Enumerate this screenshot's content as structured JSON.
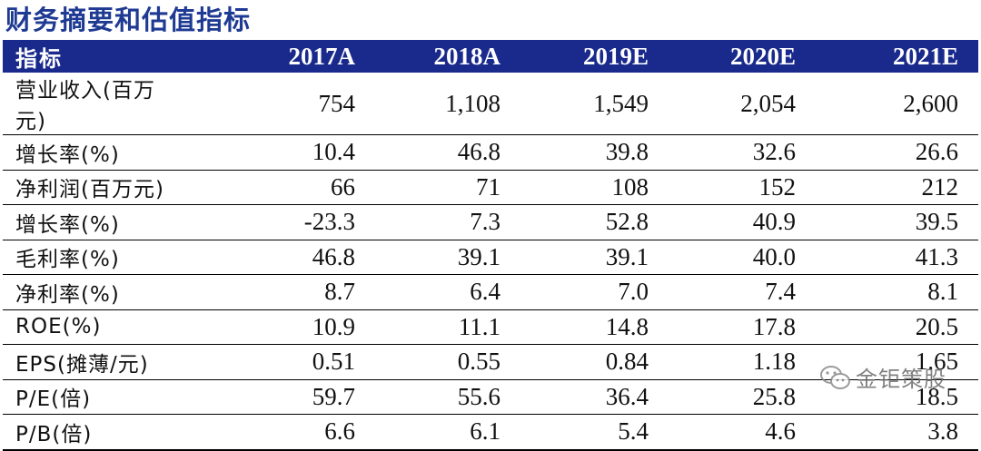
{
  "title": "财务摘要和估值指标",
  "table": {
    "header": [
      "指标",
      "2017A",
      "2018A",
      "2019E",
      "2020E",
      "2021E"
    ],
    "rows": [
      [
        "营业收入(百万元)",
        "754",
        "1,108",
        "1,549",
        "2,054",
        "2,600"
      ],
      [
        "增长率(%)",
        "10.4",
        "46.8",
        "39.8",
        "32.6",
        "26.6"
      ],
      [
        "净利润(百万元)",
        "66",
        "71",
        "108",
        "152",
        "212"
      ],
      [
        "增长率(%)",
        "-23.3",
        "7.3",
        "52.8",
        "40.9",
        "39.5"
      ],
      [
        "毛利率(%)",
        "46.8",
        "39.1",
        "39.1",
        "40.0",
        "41.3"
      ],
      [
        "净利率(%)",
        "8.7",
        "6.4",
        "7.0",
        "7.4",
        "8.1"
      ],
      [
        "ROE(%)",
        "10.9",
        "11.1",
        "14.8",
        "17.8",
        "20.5"
      ],
      [
        "EPS(摊薄/元)",
        "0.51",
        "0.55",
        "0.84",
        "1.18",
        "1.65"
      ],
      [
        "P/E(倍)",
        "59.7",
        "55.6",
        "36.4",
        "25.8",
        "18.5"
      ],
      [
        "P/B(倍)",
        "6.6",
        "6.1",
        "5.4",
        "4.6",
        "3.8"
      ]
    ]
  },
  "watermark": {
    "text": "金钜策股",
    "icon": "wechat-icon"
  },
  "colors": {
    "title": "#1f3a93",
    "header_bg": "#1a2a8c",
    "header_text": "#ffffff"
  }
}
